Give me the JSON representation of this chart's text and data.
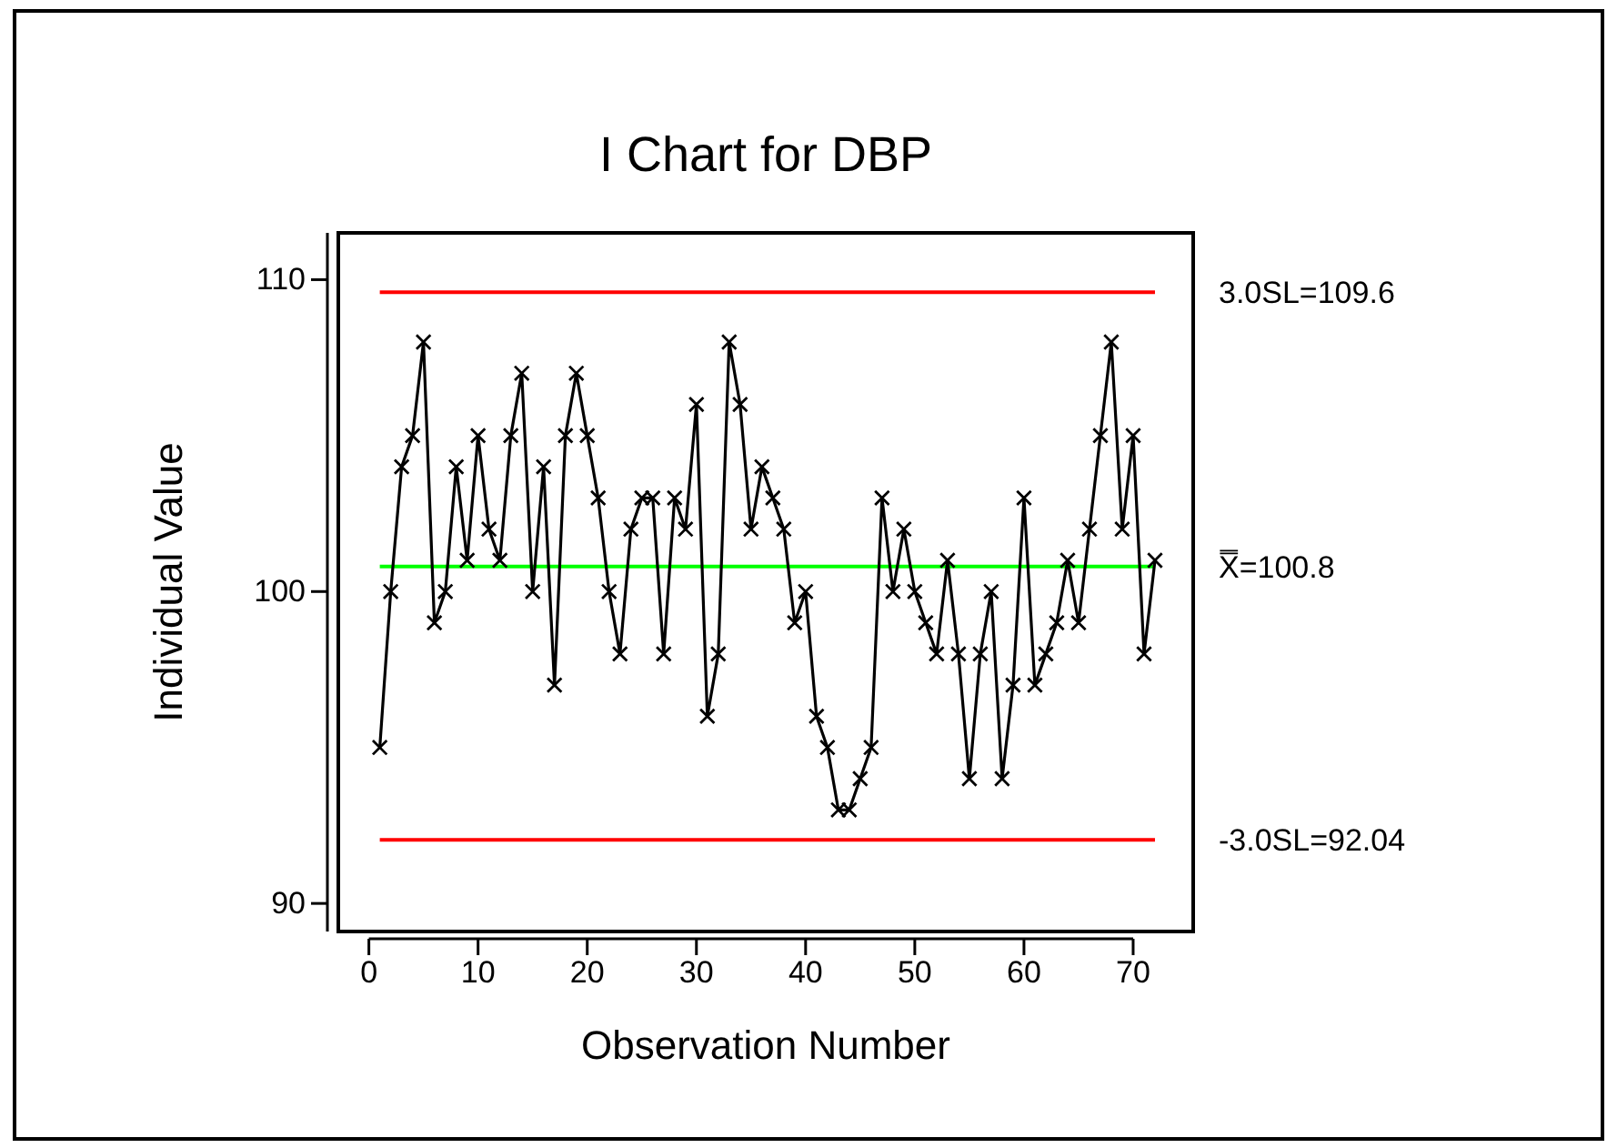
{
  "chart_data": {
    "type": "line",
    "title": "I Chart for DBP",
    "xlabel": "Observation Number",
    "ylabel": "Individual Value",
    "x": [
      1,
      2,
      3,
      4,
      5,
      6,
      7,
      8,
      9,
      10,
      11,
      12,
      13,
      14,
      15,
      16,
      17,
      18,
      19,
      20,
      21,
      22,
      23,
      24,
      25,
      26,
      27,
      28,
      29,
      30,
      31,
      32,
      33,
      34,
      35,
      36,
      37,
      38,
      39,
      40,
      41,
      42,
      43,
      44,
      45,
      46,
      47,
      48,
      49,
      50,
      51,
      52,
      53,
      54,
      55,
      56,
      57,
      58,
      59,
      60,
      61,
      62,
      63,
      64,
      65,
      66,
      67,
      68,
      69,
      70,
      71,
      72
    ],
    "series": [
      {
        "color": "#000000",
        "values": [
          95,
          100,
          104,
          105,
          108,
          99,
          100,
          104,
          101,
          105,
          102,
          101,
          105,
          107,
          100,
          104,
          97,
          105,
          107,
          105,
          103,
          100,
          98,
          102,
          103,
          103,
          98,
          103,
          102,
          106,
          96,
          98,
          108,
          106,
          102,
          104,
          103,
          102,
          99,
          100,
          96,
          95,
          93,
          93,
          94,
          95,
          103,
          100,
          102,
          100,
          99,
          98,
          101,
          98,
          94,
          98,
          100,
          94,
          97,
          103,
          97,
          98,
          99,
          101,
          99,
          102,
          105,
          108,
          102,
          105,
          98,
          101
        ]
      }
    ],
    "xlim": [
      -2.8,
      75.5
    ],
    "xticks": [
      0,
      10,
      20,
      30,
      40,
      50,
      60,
      70
    ],
    "ylim": [
      89.1,
      111.5
    ],
    "yticks": [
      90,
      100,
      110
    ],
    "marker": "cross",
    "line_style": "solid",
    "ref_lines": [
      {
        "axis": "y",
        "value": 109.6,
        "label": "3.0SL=109.6",
        "color": "#ff0000"
      },
      {
        "axis": "y",
        "value": 100.8,
        "label": "X̿=100.8",
        "color": "#00ff00"
      },
      {
        "axis": "y",
        "value": 92.04,
        "label": "-3.0SL=92.04",
        "color": "#ff0000"
      }
    ]
  }
}
